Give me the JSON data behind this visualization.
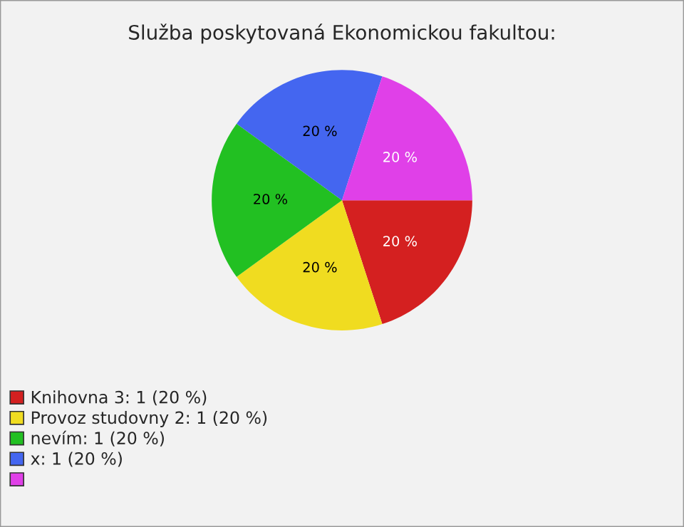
{
  "chart_data": {
    "type": "pie",
    "title": "Služba poskytovaná Ekonomickou fakultou:",
    "categories": [
      "Knihovna 3: 1 (20 %)",
      "Provoz studovny 2: 1 (20 %)",
      "nevím: 1 (20 %)",
      "x: 1 (20 %)",
      null
    ],
    "values": [
      20,
      20,
      20,
      20,
      20
    ],
    "value_labels": [
      "20 %",
      "20 %",
      "20 %",
      "20 %",
      "20 %"
    ],
    "colors": [
      "#d42020",
      "#f0dc20",
      "#22c022",
      "#4466f0",
      "#e040e8"
    ],
    "legend": "bottom left"
  }
}
